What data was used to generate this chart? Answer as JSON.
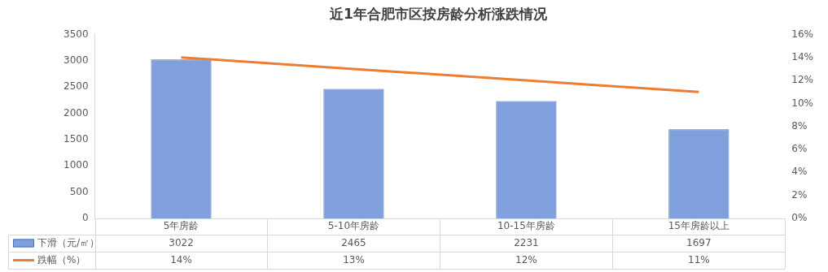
{
  "chart_data": {
    "type": "bar",
    "title": "近1年合肥市区按房龄分析涨跌情况",
    "categories": [
      "5年房龄",
      "5-10年房龄",
      "10-15年房龄",
      "15年房龄以上"
    ],
    "series": [
      {
        "name": "下滑（元/㎡）",
        "color": "#7f9fdd",
        "values": [
          3022,
          2465,
          2231,
          1697
        ],
        "value_labels": [
          "3022",
          "2465",
          "2231",
          "1697"
        ]
      },
      {
        "name": "跌幅（%）",
        "type": "line",
        "axis": "y2",
        "color": "#ed7d31",
        "values": [
          14,
          13,
          12,
          11
        ],
        "value_labels": [
          "14%",
          "13%",
          "12%",
          "11%"
        ]
      }
    ],
    "ylim": [
      0,
      3500
    ],
    "yticks": [
      0,
      500,
      1000,
      1500,
      2000,
      2500,
      3000,
      3500
    ],
    "y2lim": [
      0,
      16
    ],
    "y2ticks": [
      {
        "value": 0,
        "label": "0%"
      },
      {
        "value": 2,
        "label": "2%"
      },
      {
        "value": 4,
        "label": "4%"
      },
      {
        "value": 6,
        "label": "6%"
      },
      {
        "value": 8,
        "label": "8%"
      },
      {
        "value": 10,
        "label": "10%"
      },
      {
        "value": 12,
        "label": "12%"
      },
      {
        "value": 14,
        "label": "14%"
      },
      {
        "value": 16,
        "label": "16%"
      }
    ],
    "grid": false,
    "legend": "bottom left",
    "marker": "none",
    "line_style": "solid"
  }
}
